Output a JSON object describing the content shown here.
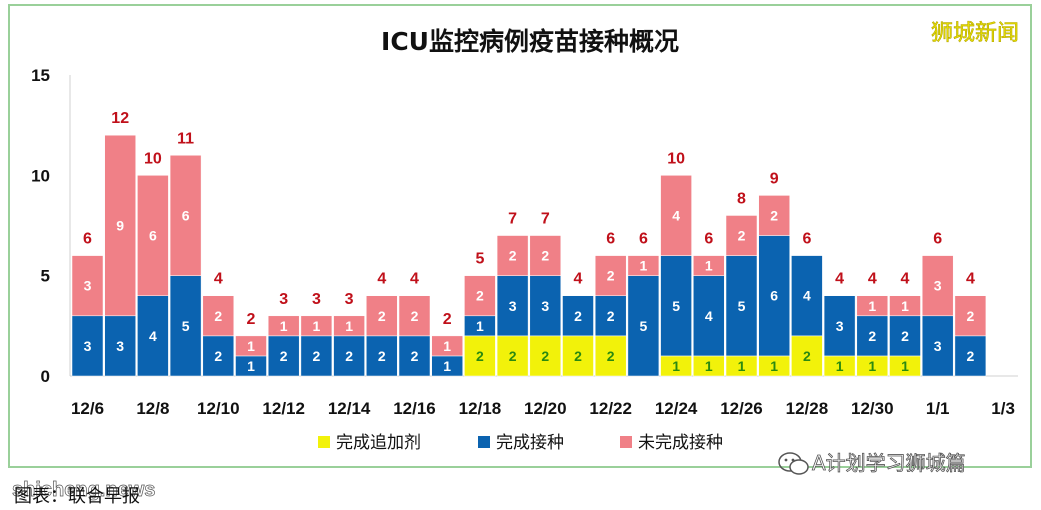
{
  "title": "ICU监控病例疫苗接种概况",
  "brand": "狮城新闻",
  "watermark": "A计划学习狮城篇",
  "site_mark": "shicheng.news",
  "caption": "图表：联合早报",
  "colors": {
    "booster": "#f2f20a",
    "complete": "#0b63b0",
    "incomplete": "#f08087",
    "total_label": "#c0101a",
    "border": "#9ad09a"
  },
  "legend": [
    {
      "label": "完成追加剂",
      "color": "#f2f20a"
    },
    {
      "label": "完成接种",
      "color": "#0b63b0"
    },
    {
      "label": "未完成接种",
      "color": "#f08087"
    }
  ],
  "chart_data": {
    "type": "bar",
    "stacked": true,
    "title": "ICU监控病例疫苗接种概况",
    "ylim": [
      0,
      15
    ],
    "yticks": [
      0,
      5,
      10,
      15
    ],
    "x_tick_labels": [
      "12/6",
      "12/8",
      "12/10",
      "12/12",
      "12/14",
      "12/16",
      "12/18",
      "12/20",
      "12/22",
      "12/24",
      "12/26",
      "12/28",
      "12/30",
      "1/1",
      "1/3"
    ],
    "categories": [
      "12/6",
      "12/7",
      "12/8",
      "12/9",
      "12/10",
      "12/11",
      "12/12",
      "12/13",
      "12/14",
      "12/15",
      "12/16",
      "12/17",
      "12/18",
      "12/19",
      "12/20",
      "12/21",
      "12/22",
      "12/23",
      "12/24",
      "12/25",
      "12/26",
      "12/27",
      "12/28",
      "12/29",
      "12/30",
      "12/31",
      "1/1",
      "1/2"
    ],
    "series": [
      {
        "name": "完成追加剂",
        "values": [
          0,
          0,
          0,
          0,
          0,
          0,
          0,
          0,
          0,
          0,
          0,
          0,
          2,
          2,
          2,
          2,
          2,
          0,
          1,
          1,
          1,
          1,
          2,
          1,
          1,
          1,
          0,
          0
        ]
      },
      {
        "name": "完成接种",
        "values": [
          3,
          3,
          4,
          5,
          2,
          1,
          2,
          2,
          2,
          2,
          2,
          1,
          1,
          3,
          3,
          2,
          2,
          5,
          5,
          4,
          5,
          6,
          4,
          3,
          2,
          2,
          3,
          2
        ]
      },
      {
        "name": "未完成接种",
        "values": [
          3,
          9,
          6,
          6,
          2,
          1,
          1,
          1,
          1,
          2,
          2,
          1,
          2,
          2,
          2,
          0,
          2,
          1,
          4,
          1,
          2,
          2,
          0,
          0,
          1,
          1,
          3,
          2
        ]
      }
    ],
    "totals": [
      6,
      12,
      10,
      11,
      4,
      2,
      3,
      3,
      3,
      4,
      4,
      2,
      5,
      7,
      7,
      4,
      6,
      6,
      10,
      6,
      8,
      9,
      6,
      4,
      4,
      4,
      6,
      4
    ],
    "legend_position": "bottom"
  }
}
